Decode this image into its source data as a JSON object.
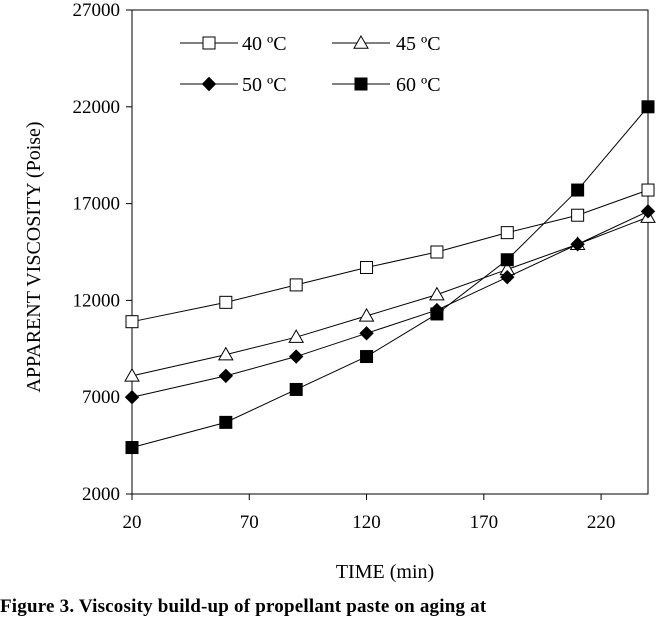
{
  "chart_data": {
    "type": "line",
    "title": "",
    "xlabel": "TIME (min)",
    "ylabel": "APPARENT VISCOSITY (Poise)",
    "xlim": [
      20,
      240
    ],
    "ylim": [
      2000,
      27000
    ],
    "x_ticks": [
      20,
      70,
      120,
      170,
      220
    ],
    "y_ticks": [
      2000,
      7000,
      12000,
      17000,
      22000,
      27000
    ],
    "grid": false,
    "legend_position": "top-left",
    "x": [
      20,
      60,
      90,
      120,
      150,
      180,
      210,
      240
    ],
    "series": [
      {
        "name": "40 ºC",
        "marker": "open-square",
        "values": [
          10900,
          11900,
          12800,
          13700,
          14500,
          15500,
          16400,
          17700
        ]
      },
      {
        "name": "45 ºC",
        "marker": "open-triangle",
        "values": [
          8100,
          9200,
          10100,
          11200,
          12300,
          13600,
          14900,
          16300
        ]
      },
      {
        "name": "50 ºC",
        "marker": "filled-diamond",
        "values": [
          7000,
          8100,
          9100,
          10300,
          11500,
          13200,
          14900,
          16600
        ]
      },
      {
        "name": "60 ºC",
        "marker": "filled-square",
        "values": [
          4400,
          5700,
          7400,
          9100,
          11300,
          14100,
          17700,
          22000
        ]
      }
    ]
  },
  "caption": "Figure 3.  Viscosity build-up of propellant paste on aging at"
}
